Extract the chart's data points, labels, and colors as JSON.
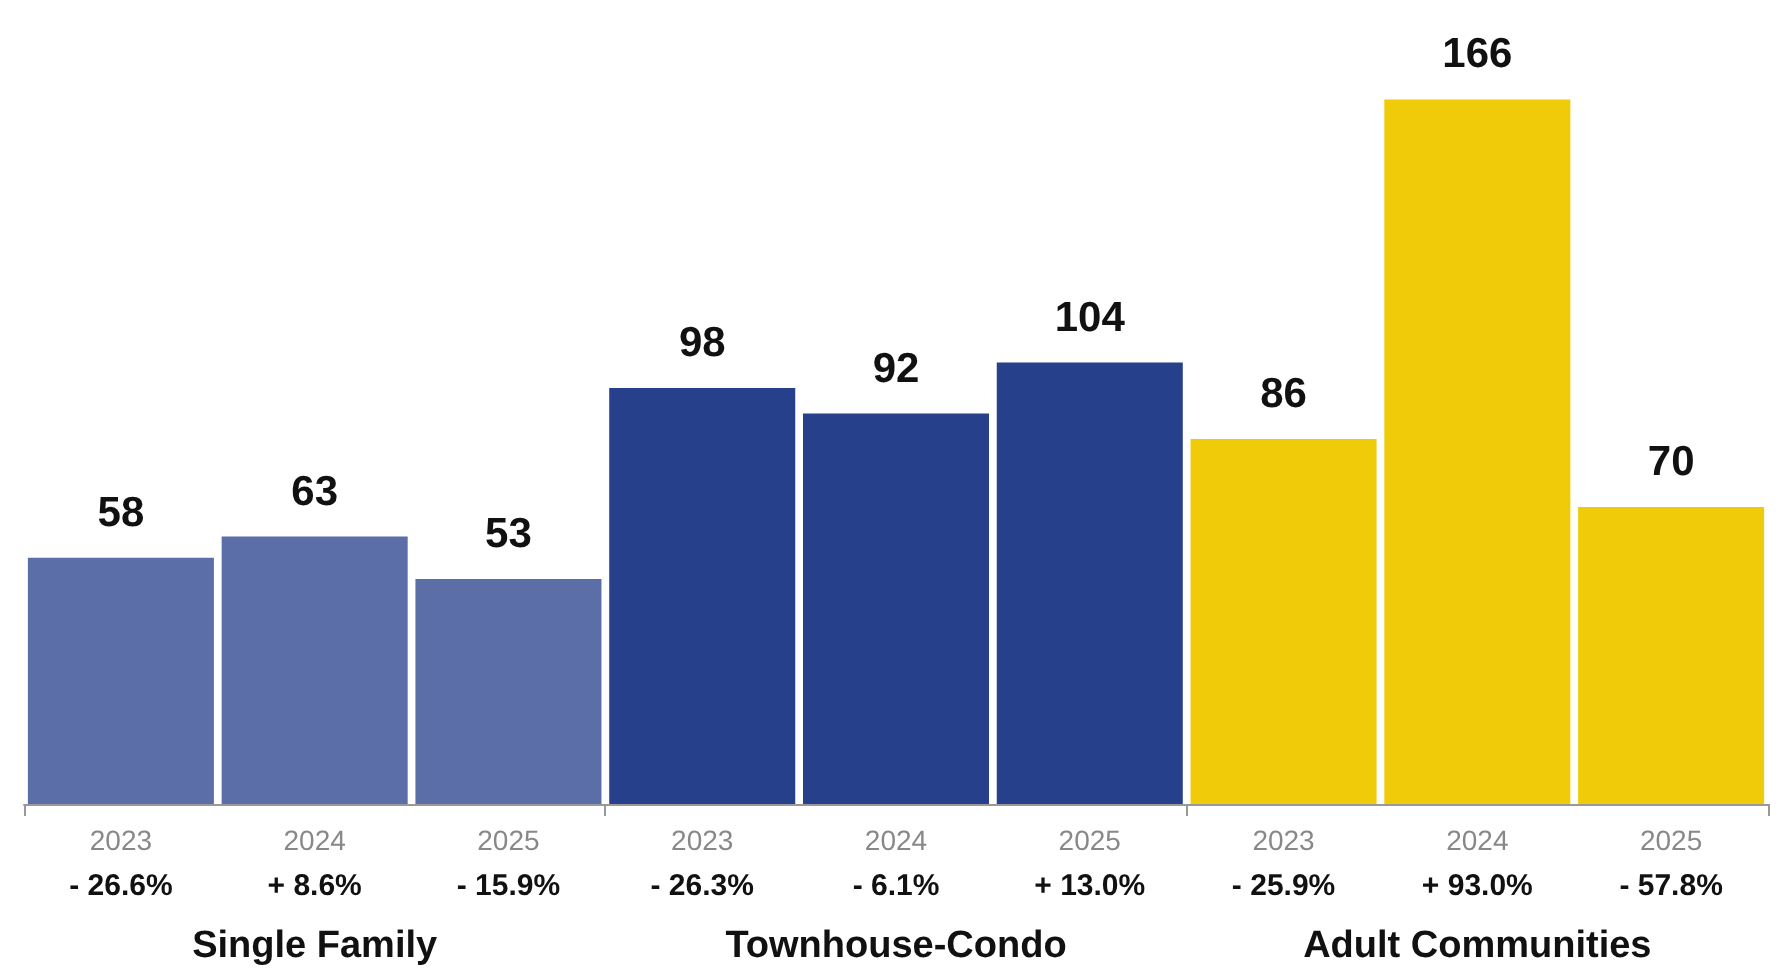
{
  "chart_data": {
    "type": "bar",
    "categories": [
      "2023",
      "2024",
      "2025",
      "2023",
      "2024",
      "2025",
      "2023",
      "2024",
      "2025"
    ],
    "values": [
      58,
      63,
      53,
      98,
      92,
      104,
      86,
      166,
      70
    ],
    "colors": [
      "#5b6ea8",
      "#5b6ea8",
      "#5b6ea8",
      "#27408b",
      "#27408b",
      "#27408b",
      "#f0cb0a",
      "#f0cb0a",
      "#f0cb0a"
    ],
    "data_labels": true,
    "annotations": [
      "- 26.6%",
      "+ 8.6%",
      "- 15.9%",
      "- 26.3%",
      "- 6.1%",
      "+ 13.0%",
      "- 25.9%",
      "+ 93.0%",
      "- 57.8%",
      "Single Family",
      "Townhouse-Condo",
      "Adult Communities"
    ]
  }
}
